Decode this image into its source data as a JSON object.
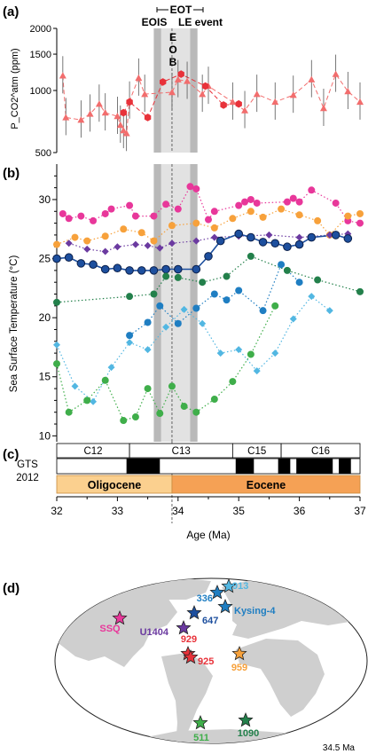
{
  "panel_labels": {
    "a": "(a)",
    "b": "(b)",
    "c": "(c)",
    "d": "(d)"
  },
  "eot": {
    "bracket_label": "EOT",
    "eois_label": "EOIS",
    "le_label": "LE event",
    "eob_label": [
      "E",
      "O",
      "B"
    ]
  },
  "colors": {
    "pco2": "#f26d6d",
    "pco2_alt": "#e8323a",
    "shade_dark": "#b9b9b9",
    "shade_light": "#e2e2e2",
    "pink": "#e8379a",
    "orange": "#f7a13b",
    "purple": "#6b3aa0",
    "navy": "#1d4f9e",
    "teal": "#1f7ec2",
    "lightblue": "#52b7e2",
    "green": "#3fae4a",
    "darkgreen": "#23804b",
    "land": "#cfcfcf",
    "ocean": "#ffffff",
    "oligocene": "#fbd08f",
    "eocene": "#f5a155"
  },
  "chart_data": [
    {
      "type": "scatter",
      "panel": "a",
      "ylabel": "P_CO2^atm (ppm)",
      "yscale": "log",
      "ylim": [
        500,
        2000
      ],
      "yticks": [
        500,
        1000,
        1500,
        2000
      ],
      "xlim": [
        37,
        32
      ],
      "series": [
        {
          "name": "pCO2 triangles",
          "marker": "triangle",
          "x": [
            32.1,
            32.15,
            32.4,
            32.55,
            32.7,
            32.8,
            33.0,
            33.05,
            33.1,
            33.15,
            33.2,
            33.35,
            33.45,
            33.9,
            34.0,
            34.15,
            34.4,
            34.5,
            34.9,
            35.1,
            35.3,
            35.6,
            35.9,
            36.2,
            36.4,
            36.6,
            36.8,
            37.0
          ],
          "y": [
            1180,
            740,
            720,
            770,
            860,
            780,
            750,
            680,
            640,
            620,
            890,
            1150,
            960,
            980,
            1130,
            1110,
            960,
            1050,
            880,
            800,
            960,
            880,
            950,
            1130,
            820,
            1200,
            990,
            880
          ]
        },
        {
          "name": "pCO2 hexagons",
          "marker": "hexagon",
          "x": [
            33.1,
            33.2,
            33.5,
            33.75,
            34.05,
            34.45,
            34.75,
            35.0
          ],
          "y": [
            780,
            880,
            740,
            1100,
            1200,
            1050,
            850,
            860
          ]
        }
      ]
    },
    {
      "type": "scatter",
      "panel": "b",
      "ylabel": "Sea Surface Temperature (°C)",
      "ylim": [
        9.5,
        33
      ],
      "yticks": [
        10,
        15,
        20,
        25,
        30
      ],
      "xlim": [
        37,
        32
      ],
      "series": [
        {
          "name": "SSQ",
          "marker": "circle",
          "x": [
            32.1,
            32.2,
            32.4,
            32.6,
            32.8,
            32.9,
            33.2,
            33.3,
            33.6,
            33.8,
            34.0,
            34.2,
            34.3,
            34.5,
            34.6,
            35.0,
            35.1,
            35.2,
            35.3,
            35.8,
            35.9,
            36.0,
            36.2,
            36.6,
            36.8,
            37.0
          ],
          "y": [
            28.8,
            28.4,
            28.6,
            28.2,
            28.8,
            29.2,
            29.5,
            28.6,
            28.6,
            29.6,
            29.2,
            31.1,
            30.9,
            28.3,
            29.0,
            29.5,
            29.8,
            30.0,
            29.7,
            29.8,
            30.1,
            29.8,
            30.8,
            29.7,
            28.2,
            28.0
          ]
        },
        {
          "name": "959",
          "marker": "circle",
          "x": [
            32.0,
            32.3,
            32.5,
            32.8,
            33.1,
            33.4,
            33.6,
            33.9,
            34.3,
            34.6,
            34.9,
            35.2,
            35.4,
            35.7,
            36.0,
            36.3,
            36.5,
            36.8,
            37.0
          ],
          "y": [
            26.2,
            26.8,
            26.5,
            26.9,
            27.5,
            27.2,
            26.5,
            27.8,
            28.0,
            27.6,
            28.4,
            29.0,
            28.5,
            29.2,
            28.7,
            28.2,
            27.0,
            28.6,
            28.8
          ]
        },
        {
          "name": "U1404",
          "marker": "diamond",
          "x": [
            32.2,
            32.5,
            32.8,
            33.0,
            33.3,
            33.5,
            33.7,
            33.9,
            34.3,
            34.6,
            35.0,
            35.5,
            36.0,
            36.5,
            36.8
          ],
          "y": [
            26.3,
            25.8,
            25.6,
            26.0,
            26.2,
            26.1,
            25.9,
            26.3,
            26.5,
            26.8,
            26.9,
            27.0,
            26.8,
            27.0,
            27.1
          ]
        },
        {
          "name": "Kysing-4",
          "marker": "circle",
          "x": [
            32.0,
            32.2,
            32.4,
            32.6,
            32.8,
            33.0,
            33.2,
            33.4,
            33.6,
            33.8,
            34.0,
            34.3,
            34.5,
            34.7,
            35.0,
            35.2,
            35.4,
            35.6,
            35.8,
            36.0,
            36.2,
            36.6,
            36.8
          ],
          "y": [
            25.0,
            25.1,
            24.6,
            24.5,
            24.1,
            24.2,
            24.0,
            24.0,
            24.0,
            24.1,
            24.1,
            24.1,
            25.2,
            26.5,
            27.1,
            26.8,
            26.4,
            26.3,
            26.0,
            26.2,
            26.8,
            27.0,
            26.7
          ]
        },
        {
          "name": "647",
          "marker": "circle",
          "x": [
            33.2,
            33.5,
            33.7,
            34.0,
            34.3,
            34.6,
            34.8,
            35.0,
            35.4,
            35.7,
            36.0
          ],
          "y": [
            18.5,
            19.6,
            21.0,
            19.5,
            20.8,
            22.0,
            21.5,
            22.3,
            20.6,
            24.5,
            23.0
          ]
        },
        {
          "name": "336",
          "marker": "diamond",
          "x": [
            32.0,
            32.3,
            32.6,
            32.9,
            33.2,
            33.5,
            33.8,
            34.1,
            34.4,
            34.7,
            35.0,
            35.3,
            35.6,
            35.9,
            36.2,
            36.5
          ],
          "y": [
            17.7,
            14.2,
            12.9,
            15.8,
            17.9,
            17.3,
            19.2,
            20.7,
            19.5,
            17.0,
            17.3,
            15.5,
            17.0,
            19.9,
            21.8,
            20.6
          ]
        },
        {
          "name": "511",
          "marker": "circle",
          "x": [
            32.0,
            32.2,
            32.5,
            32.8,
            33.1,
            33.3,
            33.5,
            33.7,
            33.9,
            34.1,
            34.3,
            34.6,
            34.9,
            35.2,
            35.6
          ],
          "y": [
            16.1,
            12.0,
            13.0,
            14.7,
            11.3,
            11.6,
            14.0,
            11.9,
            14.2,
            12.5,
            12.0,
            13.1,
            14.6,
            16.9,
            21.0
          ]
        },
        {
          "name": "1090",
          "marker": "circle",
          "x": [
            32.0,
            33.2,
            33.6,
            33.8,
            34.0,
            34.4,
            34.8,
            35.2,
            35.8,
            36.3,
            37.0
          ],
          "y": [
            21.3,
            21.8,
            22.0,
            23.5,
            23.4,
            23.0,
            23.5,
            25.2,
            24.0,
            23.2,
            22.2
          ]
        }
      ]
    }
  ],
  "xaxis": {
    "label": "Age (Ma)",
    "ticks": [
      "32",
      "33",
      "34",
      "35",
      "36",
      "37"
    ],
    "min": 32,
    "max": 37
  },
  "timescale": {
    "label_line1": "GTS",
    "label_line2": "2012",
    "chrons": [
      {
        "name": "C12",
        "from": 32.0,
        "to": 33.2
      },
      {
        "name": "C13",
        "from": 33.2,
        "to": 34.9
      },
      {
        "name": "C15",
        "from": 34.9,
        "to": 35.7
      },
      {
        "name": "C16",
        "from": 35.7,
        "to": 37.0
      }
    ],
    "normal_polarity": [
      [
        33.15,
        33.7
      ],
      [
        34.95,
        35.25
      ],
      [
        35.65,
        35.85
      ],
      [
        35.95,
        36.55
      ],
      [
        36.65,
        36.85
      ]
    ],
    "epochs": [
      {
        "name": "Oligocene",
        "from": 32.0,
        "to": 33.9
      },
      {
        "name": "Eocene",
        "from": 33.9,
        "to": 37.0
      }
    ]
  },
  "map": {
    "age_label": "34.5 Ma",
    "sites": [
      {
        "label": "SSQ",
        "color": "pink"
      },
      {
        "label": "U1404",
        "color": "purple"
      },
      {
        "label": "647",
        "color": "navy"
      },
      {
        "label": "336",
        "color": "teal"
      },
      {
        "label": "913",
        "color": "lightblue"
      },
      {
        "label": "Kysing-4",
        "color": "teal"
      },
      {
        "label": "929",
        "color": "pco2_alt"
      },
      {
        "label": "925",
        "color": "pco2_alt"
      },
      {
        "label": "959",
        "color": "orange"
      },
      {
        "label": "511",
        "color": "green"
      },
      {
        "label": "1090",
        "color": "darkgreen"
      }
    ]
  }
}
